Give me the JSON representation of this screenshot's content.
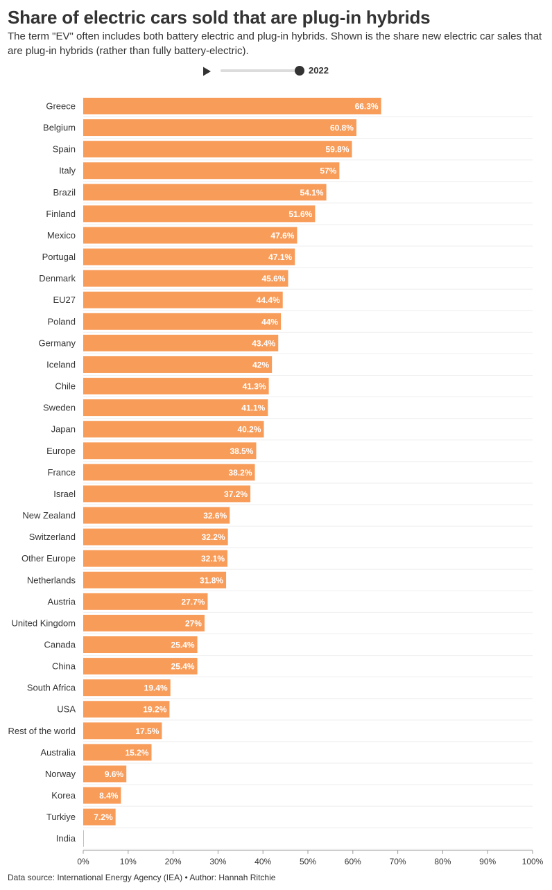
{
  "title": "Share of electric cars sold that are plug-in hybrids",
  "subtitle": "The term \"EV\" often includes both battery electric and plug-in hybrids. Shown is the share new electric car sales that are plug-in hybrids (rather than fully battery-electric).",
  "slider": {
    "year_label": "2022",
    "position_fraction": 1.0
  },
  "footer": "Data source: International Energy Agency (IEA) • Author: Hannah Ritchie",
  "colors": {
    "bar": "#F89C5A",
    "grid": "#eeeeee",
    "text": "#333333",
    "bar_label": "#ffffff"
  },
  "chart_data": {
    "type": "bar",
    "orientation": "horizontal",
    "title": "Share of electric cars sold that are plug-in hybrids",
    "xlabel": "",
    "ylabel": "",
    "xlim": [
      0,
      100
    ],
    "xticks": [
      0,
      10,
      20,
      30,
      40,
      50,
      60,
      70,
      80,
      90,
      100
    ],
    "xtick_labels": [
      "0%",
      "10%",
      "20%",
      "30%",
      "40%",
      "50%",
      "60%",
      "70%",
      "80%",
      "90%",
      "100%"
    ],
    "value_suffix": "%",
    "categories": [
      "Greece",
      "Belgium",
      "Spain",
      "Italy",
      "Brazil",
      "Finland",
      "Mexico",
      "Portugal",
      "Denmark",
      "EU27",
      "Poland",
      "Germany",
      "Iceland",
      "Chile",
      "Sweden",
      "Japan",
      "Europe",
      "France",
      "Israel",
      "New Zealand",
      "Switzerland",
      "Other Europe",
      "Netherlands",
      "Austria",
      "United Kingdom",
      "Canada",
      "China",
      "South Africa",
      "USA",
      "Rest of the world",
      "Australia",
      "Norway",
      "Korea",
      "Turkiye",
      "India"
    ],
    "values": [
      66.3,
      60.8,
      59.8,
      57,
      54.1,
      51.6,
      47.6,
      47.1,
      45.6,
      44.4,
      44,
      43.4,
      42,
      41.3,
      41.1,
      40.2,
      38.5,
      38.2,
      37.2,
      32.6,
      32.2,
      32.1,
      31.8,
      27.7,
      27,
      25.4,
      25.4,
      19.4,
      19.2,
      17.5,
      15.2,
      9.6,
      8.4,
      7.2,
      0
    ],
    "data_labels": [
      "66.3%",
      "60.8%",
      "59.8%",
      "57%",
      "54.1%",
      "51.6%",
      "47.6%",
      "47.1%",
      "45.6%",
      "44.4%",
      "44%",
      "43.4%",
      "42%",
      "41.3%",
      "41.1%",
      "40.2%",
      "38.5%",
      "38.2%",
      "37.2%",
      "32.6%",
      "32.2%",
      "32.1%",
      "31.8%",
      "27.7%",
      "27%",
      "25.4%",
      "25.4%",
      "19.4%",
      "19.2%",
      "17.5%",
      "15.2%",
      "9.6%",
      "8.4%",
      "7.2%",
      ""
    ],
    "grid": true
  }
}
